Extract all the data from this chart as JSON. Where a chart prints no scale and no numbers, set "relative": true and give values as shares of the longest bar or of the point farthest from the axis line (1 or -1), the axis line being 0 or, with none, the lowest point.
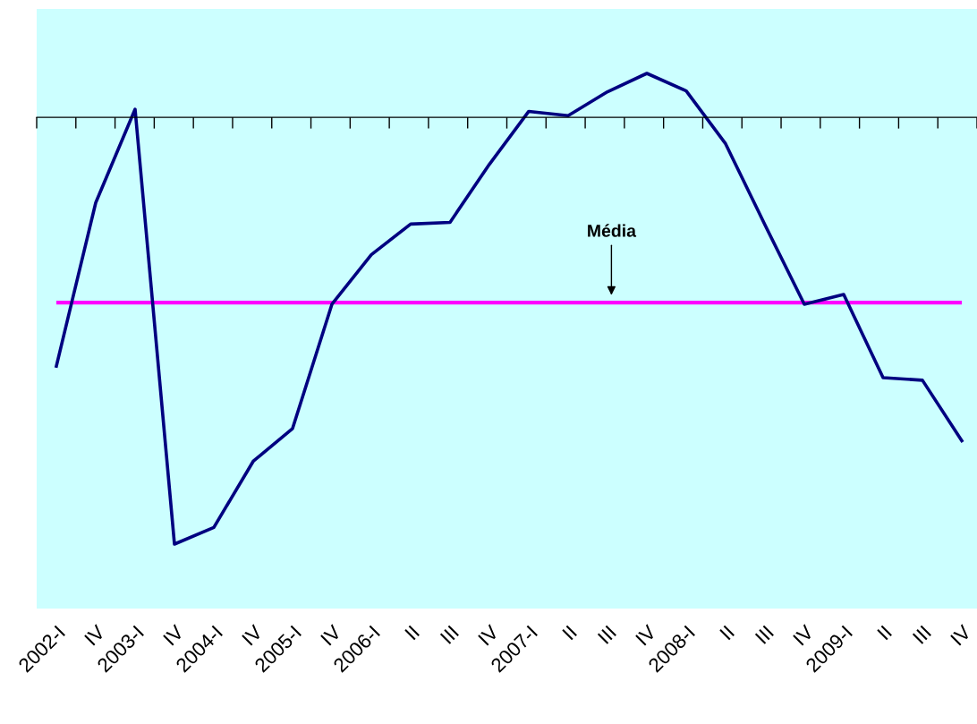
{
  "chart_data": {
    "type": "line",
    "relative": true,
    "categories": [
      "2002-I",
      "IV",
      "2003-I",
      "IV",
      "2004-I",
      "IV",
      "2005-I",
      "IV",
      "2006-I",
      "II",
      "III",
      "IV",
      "2007-I",
      "II",
      "III",
      "IV",
      "2008-I",
      "II",
      "III",
      "IV",
      "2009-I",
      "II",
      "III",
      "IV"
    ],
    "series": [
      {
        "color": "#000080",
        "values": [
          -0.583,
          -0.2,
          0.019,
          -1,
          -0.961,
          -0.806,
          -0.729,
          -0.438,
          -0.322,
          -0.25,
          -0.246,
          -0.11,
          0.014,
          0.004,
          0.06,
          0.103,
          0.062,
          -0.062,
          -0.252,
          -0.438,
          -0.415,
          -0.61,
          -0.616,
          -0.758
        ]
      }
    ],
    "ref_lines": [
      {
        "axis": "y",
        "value": -0.434,
        "label": "Média",
        "color": "#ff00ff",
        "line_style": "solid"
      }
    ],
    "grid": false,
    "marker": "none",
    "line_style": "solid"
  }
}
